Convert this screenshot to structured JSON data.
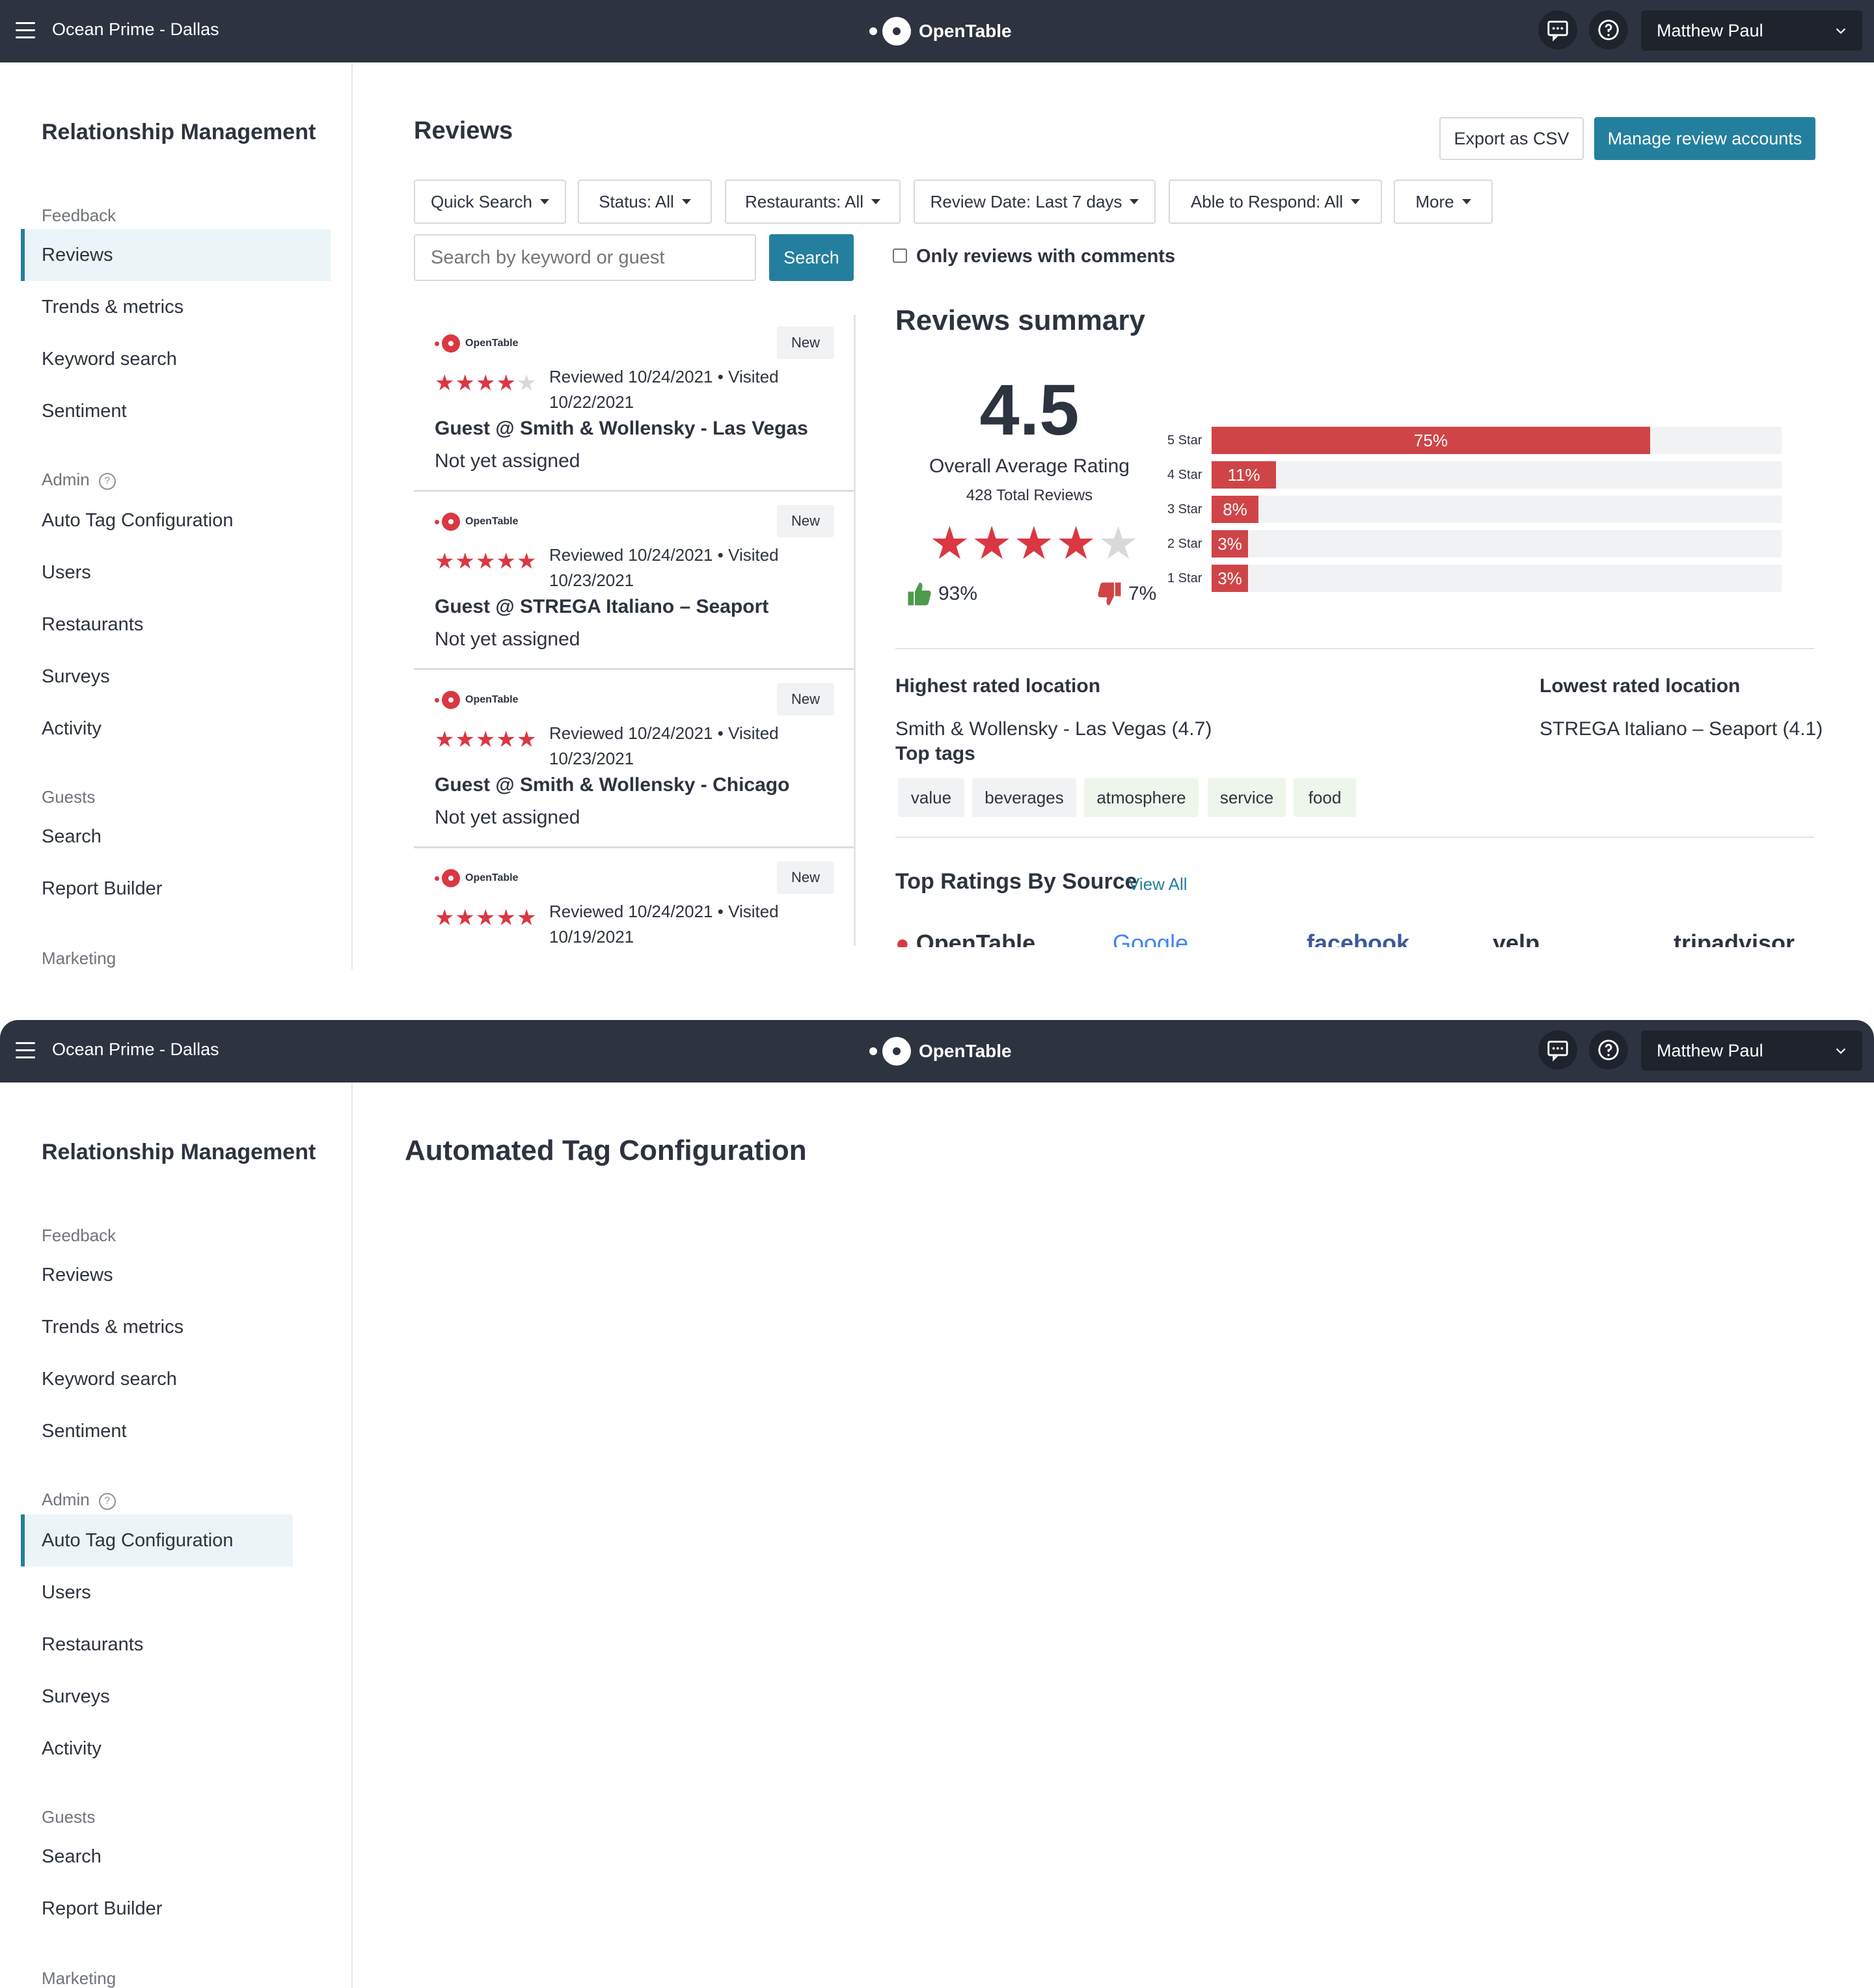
{
  "topbar": {
    "venue": "Ocean Prime - Dallas",
    "brand": "OpenTable",
    "user": "Matthew Paul",
    "icons": [
      "menu-icon",
      "chat-icon",
      "help-icon",
      "chevron-down-icon"
    ]
  },
  "sidebar": {
    "title": "Relationship Management",
    "feedback_label": "Feedback",
    "admin_label": "Admin",
    "guests_label": "Guests",
    "marketing_label": "Marketing",
    "items": {
      "reviews": "Reviews",
      "trends": "Trends & metrics",
      "keyword": "Keyword search",
      "sentiment": "Sentiment",
      "autotag": "Auto Tag Configuration",
      "users": "Users",
      "restaurants": "Restaurants",
      "surveys": "Surveys",
      "activity": "Activity",
      "search": "Search",
      "report": "Report Builder"
    }
  },
  "reviews_page": {
    "title": "Reviews",
    "export_label": "Export as CSV",
    "manage_label": "Manage review accounts",
    "filters": {
      "quick": "Quick Search",
      "status": "Status: All",
      "restaurants": "Restaurants: All",
      "date": "Review Date: Last 7 days",
      "respond": "Able to Respond: All",
      "more": "More"
    },
    "search": {
      "placeholder": "Search by keyword or guest",
      "button": "Search"
    },
    "comments_only_label": "Only reviews with comments",
    "list": [
      {
        "source": "OpenTable",
        "badge": "New",
        "stars": 4,
        "date": "Reviewed 10/24/2021 • Visited 10/22/2021",
        "guest": "Guest @ Smith & Wollensky - Las Vegas",
        "assignment": "Not yet assigned"
      },
      {
        "source": "OpenTable",
        "badge": "New",
        "stars": 5,
        "date": "Reviewed 10/24/2021 • Visited 10/23/2021",
        "guest": "Guest @ STREGA Italiano – Seaport",
        "assignment": "Not yet assigned"
      },
      {
        "source": "OpenTable",
        "badge": "New",
        "stars": 5,
        "date": "Reviewed 10/24/2021 • Visited 10/23/2021",
        "guest": "Guest @ Smith & Wollensky - Chicago",
        "assignment": "Not yet assigned"
      },
      {
        "source": "OpenTable",
        "badge": "New",
        "stars": 5,
        "date": "Reviewed 10/24/2021 • Visited 10/19/2021",
        "guest": "",
        "assignment": ""
      }
    ],
    "summary": {
      "title": "Reviews summary",
      "rating": "4.5",
      "rating_stars": 4.5,
      "overall_label": "Overall Average Rating",
      "total_label": "428 Total Reviews",
      "positive_pct": "93%",
      "negative_pct": "7%",
      "distribution": [
        {
          "label": "5 Star",
          "value": 0.75,
          "text": "75%"
        },
        {
          "label": "4 Star",
          "value": 0.11,
          "text": "11%"
        },
        {
          "label": "3 Star",
          "value": 0.08,
          "text": "8%"
        },
        {
          "label": "2 Star",
          "value": 0.03,
          "text": "3%"
        },
        {
          "label": "1 Star",
          "value": 0.03,
          "text": "3%"
        }
      ],
      "highest_label": "Highest rated location",
      "highest_value": "Smith & Wollensky - Las Vegas (4.7)",
      "lowest_label": "Lowest rated location",
      "lowest_value": "STREGA Italiano – Seaport (4.1)",
      "top_tags_label": "Top tags",
      "tags": [
        "value",
        "beverages",
        "atmosphere",
        "service",
        "food"
      ],
      "top_sources_label": "Top Ratings By Source",
      "view_all": "View All",
      "sources": [
        "OpenTable",
        "Google",
        "facebook",
        "yelp",
        "tripadvisor"
      ]
    }
  },
  "autotag_page": {
    "title": "Automated Tag Configuration"
  },
  "colors": {
    "topbar": "#2d333f",
    "accent": "#247f9e",
    "brand_red": "#da3743",
    "bar_red": "#cf4547"
  }
}
